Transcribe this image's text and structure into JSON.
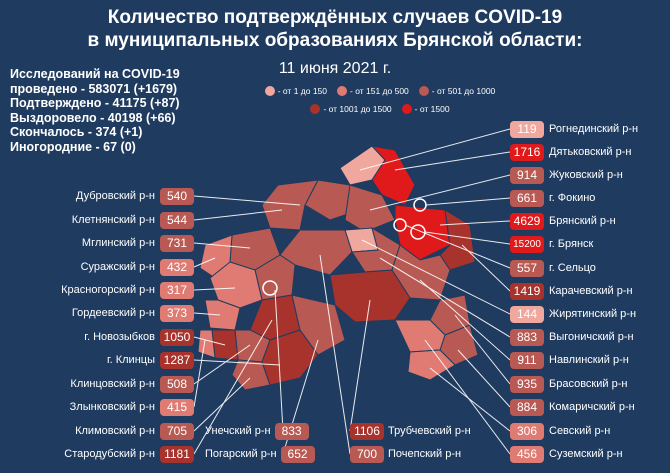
{
  "header": {
    "title_line1": "Количество подтверждённых случаев COVID-19",
    "title_line2": "в муниципальных образованиях Брянской области:",
    "date": "11 июня 2021 г."
  },
  "stats": [
    "Исследований на COVID-19",
    "проведено - 583071 (+1679)",
    "Подтверждено - 41175 (+87)",
    "Выздоровело - 40198 (+66)",
    "Скончалось - 374 (+1)",
    "Иногородние - 67 (0)"
  ],
  "legend": [
    {
      "label": "- от 1 до 150",
      "color": "#f0a79d"
    },
    {
      "label": "- от 151 до 500",
      "color": "#df7b72"
    },
    {
      "label": "- от 501 до 1000",
      "color": "#b85a53"
    },
    {
      "label": "- от 1001 до 1500",
      "color": "#a8322c"
    },
    {
      "label": "- от 1500",
      "color": "#e0191b"
    }
  ],
  "left_districts": [
    {
      "name": "Дубровский р-н",
      "value": "540",
      "color": "#b85a53"
    },
    {
      "name": "Клетнянский р-н",
      "value": "544",
      "color": "#b85a53"
    },
    {
      "name": "Мглинский р-н",
      "value": "731",
      "color": "#b85a53"
    },
    {
      "name": "Суражский р-н",
      "value": "432",
      "color": "#df7b72"
    },
    {
      "name": "Красногорский р-н",
      "value": "317",
      "color": "#df7b72"
    },
    {
      "name": "Гордеевский р-н",
      "value": "373",
      "color": "#df7b72"
    },
    {
      "name": "г. Новозыбков",
      "value": "1050",
      "color": "#a8322c"
    },
    {
      "name": "г. Клинцы",
      "value": "1287",
      "color": "#a8322c"
    },
    {
      "name": "Клинцовский р-н",
      "value": "508",
      "color": "#b85a53"
    },
    {
      "name": "Злынковский р-н",
      "value": "415",
      "color": "#df7b72"
    },
    {
      "name": "Климовский р-н",
      "value": "705",
      "color": "#b85a53"
    },
    {
      "name": "Стародубский р-н",
      "value": "1181",
      "color": "#a8322c"
    }
  ],
  "right_districts": [
    {
      "name": "Рогнединский р-н",
      "value": "119",
      "color": "#f0a79d"
    },
    {
      "name": "Дятьковский р-н",
      "value": "1716",
      "color": "#e0191b"
    },
    {
      "name": "Жуковский р-н",
      "value": "914",
      "color": "#b85a53"
    },
    {
      "name": "г. Фокино",
      "value": "661",
      "color": "#b85a53"
    },
    {
      "name": "Брянский р-н",
      "value": "4629",
      "color": "#e0191b"
    },
    {
      "name": "г. Брянск",
      "value": "15200",
      "color": "#e0191b"
    },
    {
      "name": "г. Сельцо",
      "value": "557",
      "color": "#b85a53"
    },
    {
      "name": "Карачевский р-н",
      "value": "1419",
      "color": "#a8322c"
    },
    {
      "name": "Жирятинский р-н",
      "value": "144",
      "color": "#f0a79d"
    },
    {
      "name": "Выгоничский р-н",
      "value": "883",
      "color": "#b85a53"
    },
    {
      "name": "Навлинский р-н",
      "value": "911",
      "color": "#b85a53"
    },
    {
      "name": "Брасовский р-н",
      "value": "935",
      "color": "#b85a53"
    },
    {
      "name": "Комаричский р-н",
      "value": "884",
      "color": "#b85a53"
    },
    {
      "name": "Севский р-н",
      "value": "306",
      "color": "#df7b72"
    },
    {
      "name": "Суземский р-н",
      "value": "456",
      "color": "#df7b72"
    }
  ],
  "bottom_districts": [
    {
      "name": "Унечский р-н",
      "value": "833",
      "color": "#b85a53",
      "side": "left"
    },
    {
      "name": "Погарский р-н",
      "value": "652",
      "color": "#b85a53",
      "side": "left"
    },
    {
      "name": "Трубчевский р-н",
      "value": "1106",
      "color": "#a8322c",
      "side": "right"
    },
    {
      "name": "Почепский р-н",
      "value": "700",
      "color": "#b85a53",
      "side": "right"
    }
  ]
}
